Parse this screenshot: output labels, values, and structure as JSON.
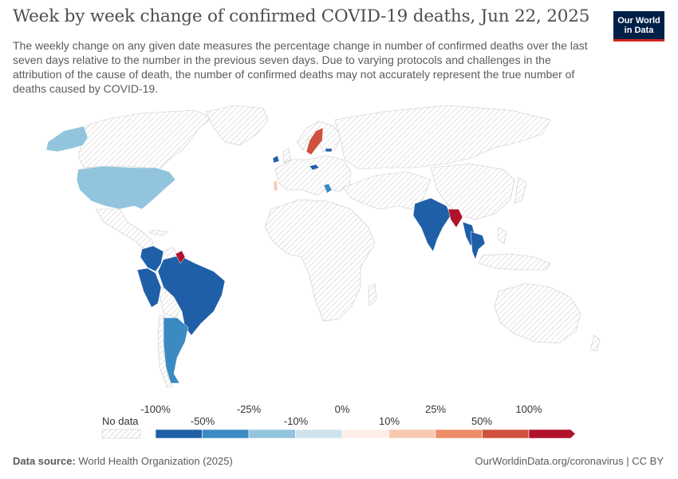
{
  "header": {
    "title": "Week by week change of confirmed COVID-19 deaths, Jun 22, 2025",
    "subtitle": "The weekly change on any given date measures the percentage change in number of confirmed deaths over the last seven days relative to the number in the previous seven days. Due to varying protocols and challenges in the attribution of the cause of death, the number of confirmed deaths may not accurately represent the true number of deaths caused by COVID-19.",
    "logo_line1": "Our World",
    "logo_line2": "in Data"
  },
  "legend": {
    "no_data_label": "No data",
    "ticks_top": [
      "-100%",
      "-25%",
      "0%",
      "25%",
      "100%"
    ],
    "ticks_bottom": [
      "-50%",
      "-10%",
      "10%",
      "50%"
    ],
    "bins": [
      {
        "color": "#1f5fa8"
      },
      {
        "color": "#3b8bc2"
      },
      {
        "color": "#93c4de"
      },
      {
        "color": "#cfe3ef"
      },
      {
        "color": "#fdeee6"
      },
      {
        "color": "#f8c9b0"
      },
      {
        "color": "#ec8d6a"
      },
      {
        "color": "#d0513f"
      },
      {
        "color": "#b0122c"
      }
    ]
  },
  "map_data": {
    "countries": [
      {
        "name": "United States",
        "category": "-25% to -10%",
        "color": "#93c4de"
      },
      {
        "name": "Alaska",
        "category": "-25% to -10%",
        "color": "#93c4de"
      },
      {
        "name": "Brazil",
        "category": "-100% to -50%",
        "color": "#1f5fa8"
      },
      {
        "name": "Peru",
        "category": "-100% to -50%",
        "color": "#1f5fa8"
      },
      {
        "name": "Colombia",
        "category": "-100% to -50%",
        "color": "#1f5fa8"
      },
      {
        "name": "Argentina",
        "category": "-50% to -25%",
        "color": "#3b8bc2"
      },
      {
        "name": "Suriname",
        "category": "100%+",
        "color": "#b0122c"
      },
      {
        "name": "Sweden",
        "category": "50% to 100%",
        "color": "#d0513f"
      },
      {
        "name": "Portugal",
        "category": "10% to 25%",
        "color": "#f8c9b0"
      },
      {
        "name": "Ireland",
        "category": "-100% to -50%",
        "color": "#1f5fa8"
      },
      {
        "name": "Czechia",
        "category": "-100% to -50%",
        "color": "#1f5fa8"
      },
      {
        "name": "Latvia",
        "category": "-100% to -50%",
        "color": "#1f5fa8"
      },
      {
        "name": "Greece",
        "category": "-50% to -25%",
        "color": "#3b8bc2"
      },
      {
        "name": "India",
        "category": "-100% to -50%",
        "color": "#1f5fa8"
      },
      {
        "name": "Bangladesh",
        "category": "100%+",
        "color": "#b0122c"
      },
      {
        "name": "Thailand",
        "category": "-100% to -50%",
        "color": "#1f5fa8"
      },
      {
        "name": "Myanmar",
        "category": "-100% to -50%",
        "color": "#1f5fa8"
      }
    ]
  },
  "footer": {
    "source_label": "Data source:",
    "source_value": "World Health Organization (2025)",
    "url": "OurWorldinData.org/coronavirus | CC BY"
  }
}
